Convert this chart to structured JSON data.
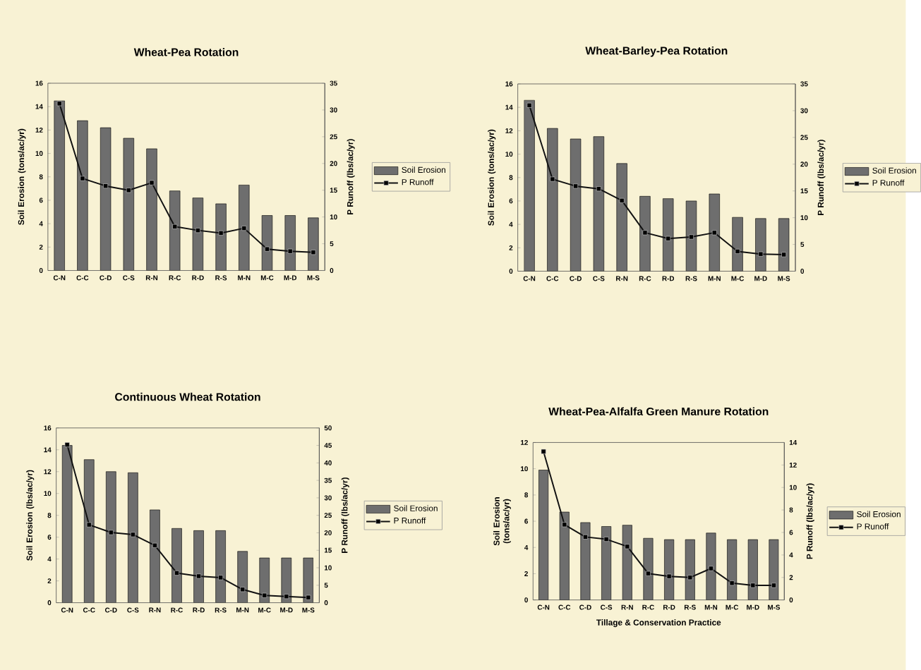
{
  "chart_data": [
    {
      "type": "bar",
      "title": "Wheat-Pea Rotation",
      "ylabel": "Soil Erosion (tons/ac/yr)",
      "y2label": "P Runoff (lbs/ac/yr)",
      "categories": [
        "C-N",
        "C-C",
        "C-D",
        "C-S",
        "R-N",
        "R-C",
        "R-D",
        "R-S",
        "M-N",
        "M-C",
        "M-D",
        "M-S"
      ],
      "series": [
        {
          "name": "Soil Erosion",
          "color": "#6e6e6e",
          "values": [
            14.5,
            12.8,
            12.2,
            11.3,
            10.4,
            6.8,
            6.2,
            5.7,
            7.3,
            4.7,
            4.7,
            4.5
          ]
        },
        {
          "name": "P Runoff",
          "type": "line",
          "axis": "y2",
          "color": "#111111",
          "values": [
            31.2,
            17.2,
            15.8,
            15.0,
            16.4,
            8.2,
            7.5,
            7.0,
            7.9,
            4.0,
            3.6,
            3.4
          ]
        }
      ],
      "ylim": [
        0,
        16
      ],
      "yticks": [
        0,
        2,
        4,
        6,
        8,
        10,
        12,
        14,
        16
      ],
      "y2lim": [
        0,
        35
      ],
      "y2ticks": [
        0,
        5,
        10,
        15,
        20,
        25,
        30,
        35
      ],
      "legend": "right",
      "marker": "square"
    },
    {
      "type": "bar",
      "title": "Wheat-Barley-Pea Rotation",
      "ylabel": "Soil Erosion (tons/ac/yr)",
      "y2label": "P Runoff (lbs/ac/yr)",
      "categories": [
        "C-N",
        "C-C",
        "C-D",
        "C-S",
        "R-N",
        "R-C",
        "R-D",
        "R-S",
        "M-N",
        "M-C",
        "M-D",
        "M-S"
      ],
      "series": [
        {
          "name": "Soil Erosion",
          "color": "#6e6e6e",
          "values": [
            14.6,
            12.2,
            11.3,
            11.5,
            9.2,
            6.4,
            6.2,
            6.0,
            6.6,
            4.6,
            4.5,
            4.5
          ]
        },
        {
          "name": "P Runoff",
          "type": "line",
          "axis": "y2",
          "color": "#111111",
          "values": [
            31.0,
            17.2,
            15.9,
            15.4,
            13.2,
            7.2,
            6.1,
            6.4,
            7.2,
            3.7,
            3.2,
            3.1
          ]
        }
      ],
      "ylim": [
        0,
        16
      ],
      "yticks": [
        0,
        2,
        4,
        6,
        8,
        10,
        12,
        14,
        16
      ],
      "y2lim": [
        0,
        35
      ],
      "y2ticks": [
        0,
        5,
        10,
        15,
        20,
        25,
        30,
        35
      ],
      "legend": "right",
      "marker": "square"
    },
    {
      "type": "bar",
      "title": "Continuous Wheat Rotation",
      "ylabel": "Soil Erosion (lbs/ac/yr)",
      "y2label": "P Runoff (lbs/ac/yr)",
      "categories": [
        "C-N",
        "C-C",
        "C-D",
        "C-S",
        "R-N",
        "R-C",
        "R-D",
        "R-S",
        "M-N",
        "M-C",
        "M-D",
        "M-S"
      ],
      "series": [
        {
          "name": "Soil Erosion",
          "color": "#6e6e6e",
          "values": [
            14.4,
            13.1,
            12.0,
            11.9,
            8.5,
            6.8,
            6.6,
            6.6,
            4.7,
            4.1,
            4.1,
            4.1
          ]
        },
        {
          "name": "P Runoff",
          "type": "line",
          "axis": "y2",
          "color": "#111111",
          "values": [
            45.2,
            22.3,
            20.1,
            19.5,
            16.4,
            8.5,
            7.6,
            7.2,
            3.8,
            2.1,
            1.8,
            1.5
          ]
        }
      ],
      "ylim": [
        0,
        16
      ],
      "yticks": [
        0,
        2,
        4,
        6,
        8,
        10,
        12,
        14,
        16
      ],
      "y2lim": [
        0,
        50
      ],
      "y2ticks": [
        0,
        5,
        10,
        15,
        20,
        25,
        30,
        35,
        40,
        45,
        50
      ],
      "legend": "right",
      "marker": "square"
    },
    {
      "type": "bar",
      "title": "Wheat-Pea-Alfalfa Green Manure Rotation",
      "xlabel": "Tillage & Conservation Practice",
      "ylabel": "Soil Erosion (tons/ac/yr)",
      "y2label": "P Runoff (lbs/ac/yr)",
      "categories": [
        "C-N",
        "C-C",
        "C-D",
        "C-S",
        "R-N",
        "R-C",
        "R-D",
        "R-S",
        "M-N",
        "M-C",
        "M-D",
        "M-S"
      ],
      "series": [
        {
          "name": "Soil Erosion",
          "color": "#6e6e6e",
          "values": [
            9.9,
            6.7,
            5.9,
            5.6,
            5.7,
            4.7,
            4.6,
            4.6,
            5.1,
            4.6,
            4.6,
            4.6
          ]
        },
        {
          "name": "P Runoff",
          "type": "line",
          "axis": "y2",
          "color": "#111111",
          "values": [
            13.2,
            6.7,
            5.6,
            5.4,
            4.75,
            2.35,
            2.1,
            2.0,
            2.8,
            1.5,
            1.3,
            1.3
          ]
        }
      ],
      "ylim": [
        0,
        12
      ],
      "yticks": [
        0,
        2,
        4,
        6,
        8,
        10,
        12
      ],
      "y2lim": [
        0,
        14
      ],
      "y2ticks": [
        0,
        2,
        4,
        6,
        8,
        10,
        12,
        14
      ],
      "legend": "right",
      "marker": "square"
    }
  ]
}
